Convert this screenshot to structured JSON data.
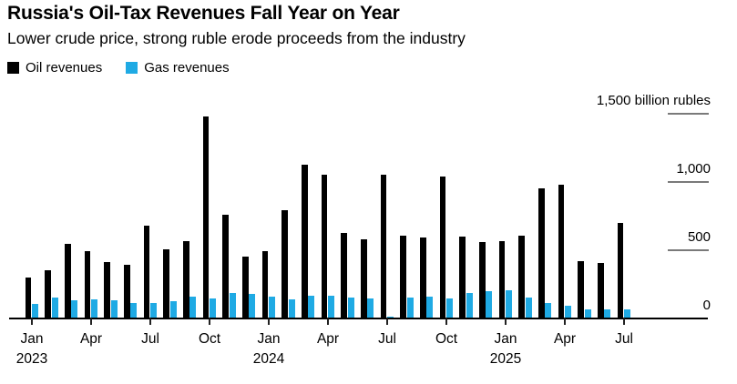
{
  "header": {
    "title": "Russia's Oil-Tax Revenues Fall Year on Year",
    "subtitle": "Lower crude price, strong ruble erode proceeds from the industry"
  },
  "legend": {
    "items": [
      {
        "label": "Oil revenues",
        "color": "#000000"
      },
      {
        "label": "Gas revenues",
        "color": "#1faae4"
      }
    ]
  },
  "colors": {
    "oil": "#000000",
    "gas": "#1faae4",
    "grid_tick": "#7a7a7a",
    "axis": "#000000"
  },
  "y_axis": {
    "unit_label": "1,500 billion rubles",
    "ticks": [
      {
        "value": 1500,
        "label": "1,500 billion rubles"
      },
      {
        "value": 1000,
        "label": "1,000"
      },
      {
        "value": 500,
        "label": "500"
      },
      {
        "value": 0,
        "label": "0"
      }
    ]
  },
  "x_axis": {
    "ticks": [
      {
        "month_index": 0,
        "label": "Jan",
        "year": "2023"
      },
      {
        "month_index": 3,
        "label": "Apr",
        "year": ""
      },
      {
        "month_index": 6,
        "label": "Jul",
        "year": ""
      },
      {
        "month_index": 9,
        "label": "Oct",
        "year": ""
      },
      {
        "month_index": 12,
        "label": "Jan",
        "year": "2024"
      },
      {
        "month_index": 15,
        "label": "Apr",
        "year": ""
      },
      {
        "month_index": 18,
        "label": "Jul",
        "year": ""
      },
      {
        "month_index": 21,
        "label": "Oct",
        "year": ""
      },
      {
        "month_index": 24,
        "label": "Jan",
        "year": "2025"
      },
      {
        "month_index": 27,
        "label": "Apr",
        "year": ""
      },
      {
        "month_index": 30,
        "label": "Jul",
        "year": ""
      }
    ]
  },
  "chart_data": {
    "type": "bar",
    "title": "Russia's Oil-Tax Revenues Fall Year on Year",
    "subtitle": "Lower crude price, strong ruble erode proceeds from the industry",
    "unit": "billion rubles",
    "ylim": [
      0,
      1500
    ],
    "grid": "right-edge ticks only",
    "legend_position": "top-left",
    "categories": [
      "Jan 2023",
      "Feb 2023",
      "Mar 2023",
      "Apr 2023",
      "May 2023",
      "Jun 2023",
      "Jul 2023",
      "Aug 2023",
      "Sep 2023",
      "Oct 2023",
      "Nov 2023",
      "Dec 2023",
      "Jan 2024",
      "Feb 2024",
      "Mar 2024",
      "Apr 2024",
      "May 2024",
      "Jun 2024",
      "Jul 2024",
      "Aug 2024",
      "Sep 2024",
      "Oct 2024",
      "Nov 2024",
      "Dec 2024",
      "Jan 2025",
      "Feb 2025",
      "Mar 2025",
      "Apr 2025",
      "May 2025",
      "Jun 2025",
      "Jul 2025"
    ],
    "series": [
      {
        "name": "Oil revenues",
        "color": "#000000",
        "values": [
          300,
          350,
          545,
          490,
          415,
          395,
          680,
          505,
          565,
          1480,
          760,
          450,
          490,
          790,
          1125,
          1050,
          625,
          580,
          1050,
          605,
          590,
          1040,
          600,
          560,
          565,
          605,
          950,
          975,
          420,
          405,
          700
        ]
      },
      {
        "name": "Gas revenues",
        "color": "#1faae4",
        "values": [
          105,
          150,
          130,
          140,
          130,
          115,
          110,
          125,
          160,
          145,
          185,
          178,
          158,
          140,
          168,
          164,
          152,
          145,
          12,
          153,
          162,
          148,
          184,
          200,
          206,
          150,
          112,
          90,
          68,
          66,
          64
        ]
      }
    ]
  }
}
